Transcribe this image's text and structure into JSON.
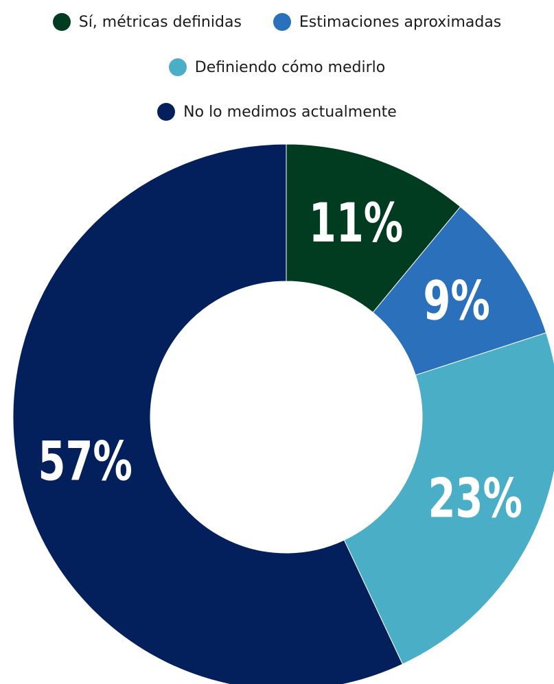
{
  "chart_data": {
    "type": "pie",
    "variant": "donut",
    "title": "",
    "legend": {
      "placement": "top-center"
    },
    "slices": [
      {
        "label": "Sí, métricas definidas",
        "value": 11,
        "display": "11%",
        "color": "#013b20"
      },
      {
        "label": "Estimaciones aproximadas",
        "value": 9,
        "display": "9%",
        "color": "#2a70bb"
      },
      {
        "label": "Definiendo cómo medirlo",
        "value": 23,
        "display": "23%",
        "color": "#4aaec6"
      },
      {
        "label": "No lo medimos actualmente",
        "value": 57,
        "display": "57%",
        "color": "#03205c"
      }
    ]
  }
}
